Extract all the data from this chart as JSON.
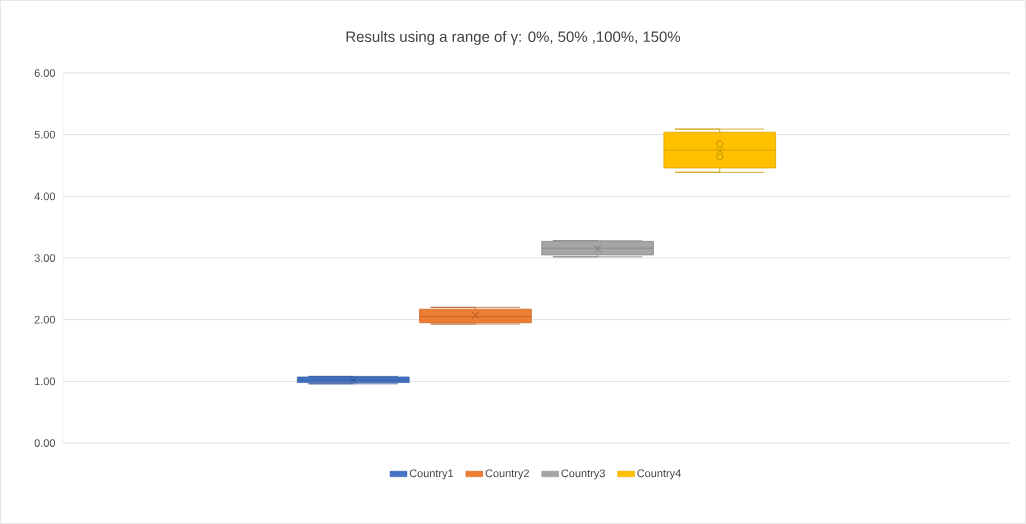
{
  "chart_data": {
    "type": "box",
    "title": "Results using  a range of γ: 0%, 50% ,100%, 150%",
    "categories": [
      null
    ],
    "series": [
      {
        "name": "Country1",
        "color": "#4472c4",
        "boxes": [
          {
            "low": 0.96,
            "q1": 0.98,
            "median": 1.02,
            "q3": 1.07,
            "high": 1.08,
            "mean": 1.02
          }
        ]
      },
      {
        "name": "Country2",
        "color": "#ed7d31",
        "boxes": [
          {
            "low": 1.93,
            "q1": 1.95,
            "median": 2.05,
            "q3": 2.17,
            "high": 2.2,
            "mean": 2.07
          }
        ]
      },
      {
        "name": "Country3",
        "color": "#a5a5a5",
        "boxes": [
          {
            "low": 3.02,
            "q1": 3.05,
            "median": 3.16,
            "q3": 3.27,
            "high": 3.28,
            "mean": 3.15
          }
        ]
      },
      {
        "name": "Country4",
        "color": "#ffc000",
        "boxes": [
          {
            "low": 4.39,
            "q1": 4.46,
            "median": 4.75,
            "q3": 5.04,
            "high": 5.09,
            "mean": 4.74,
            "outliers": [
              4.85,
              4.64
            ]
          }
        ]
      }
    ],
    "ylim": [
      0,
      6
    ],
    "yticks": [
      {
        "value": 0,
        "label": "0.00"
      },
      {
        "value": 1,
        "label": "1.00"
      },
      {
        "value": 2,
        "label": "2.00"
      },
      {
        "value": 3,
        "label": "3.00"
      },
      {
        "value": 4,
        "label": "4.00"
      },
      {
        "value": 5,
        "label": "5.00"
      },
      {
        "value": 6,
        "label": "6.00"
      }
    ],
    "grid": "y",
    "legend": "bottom"
  }
}
